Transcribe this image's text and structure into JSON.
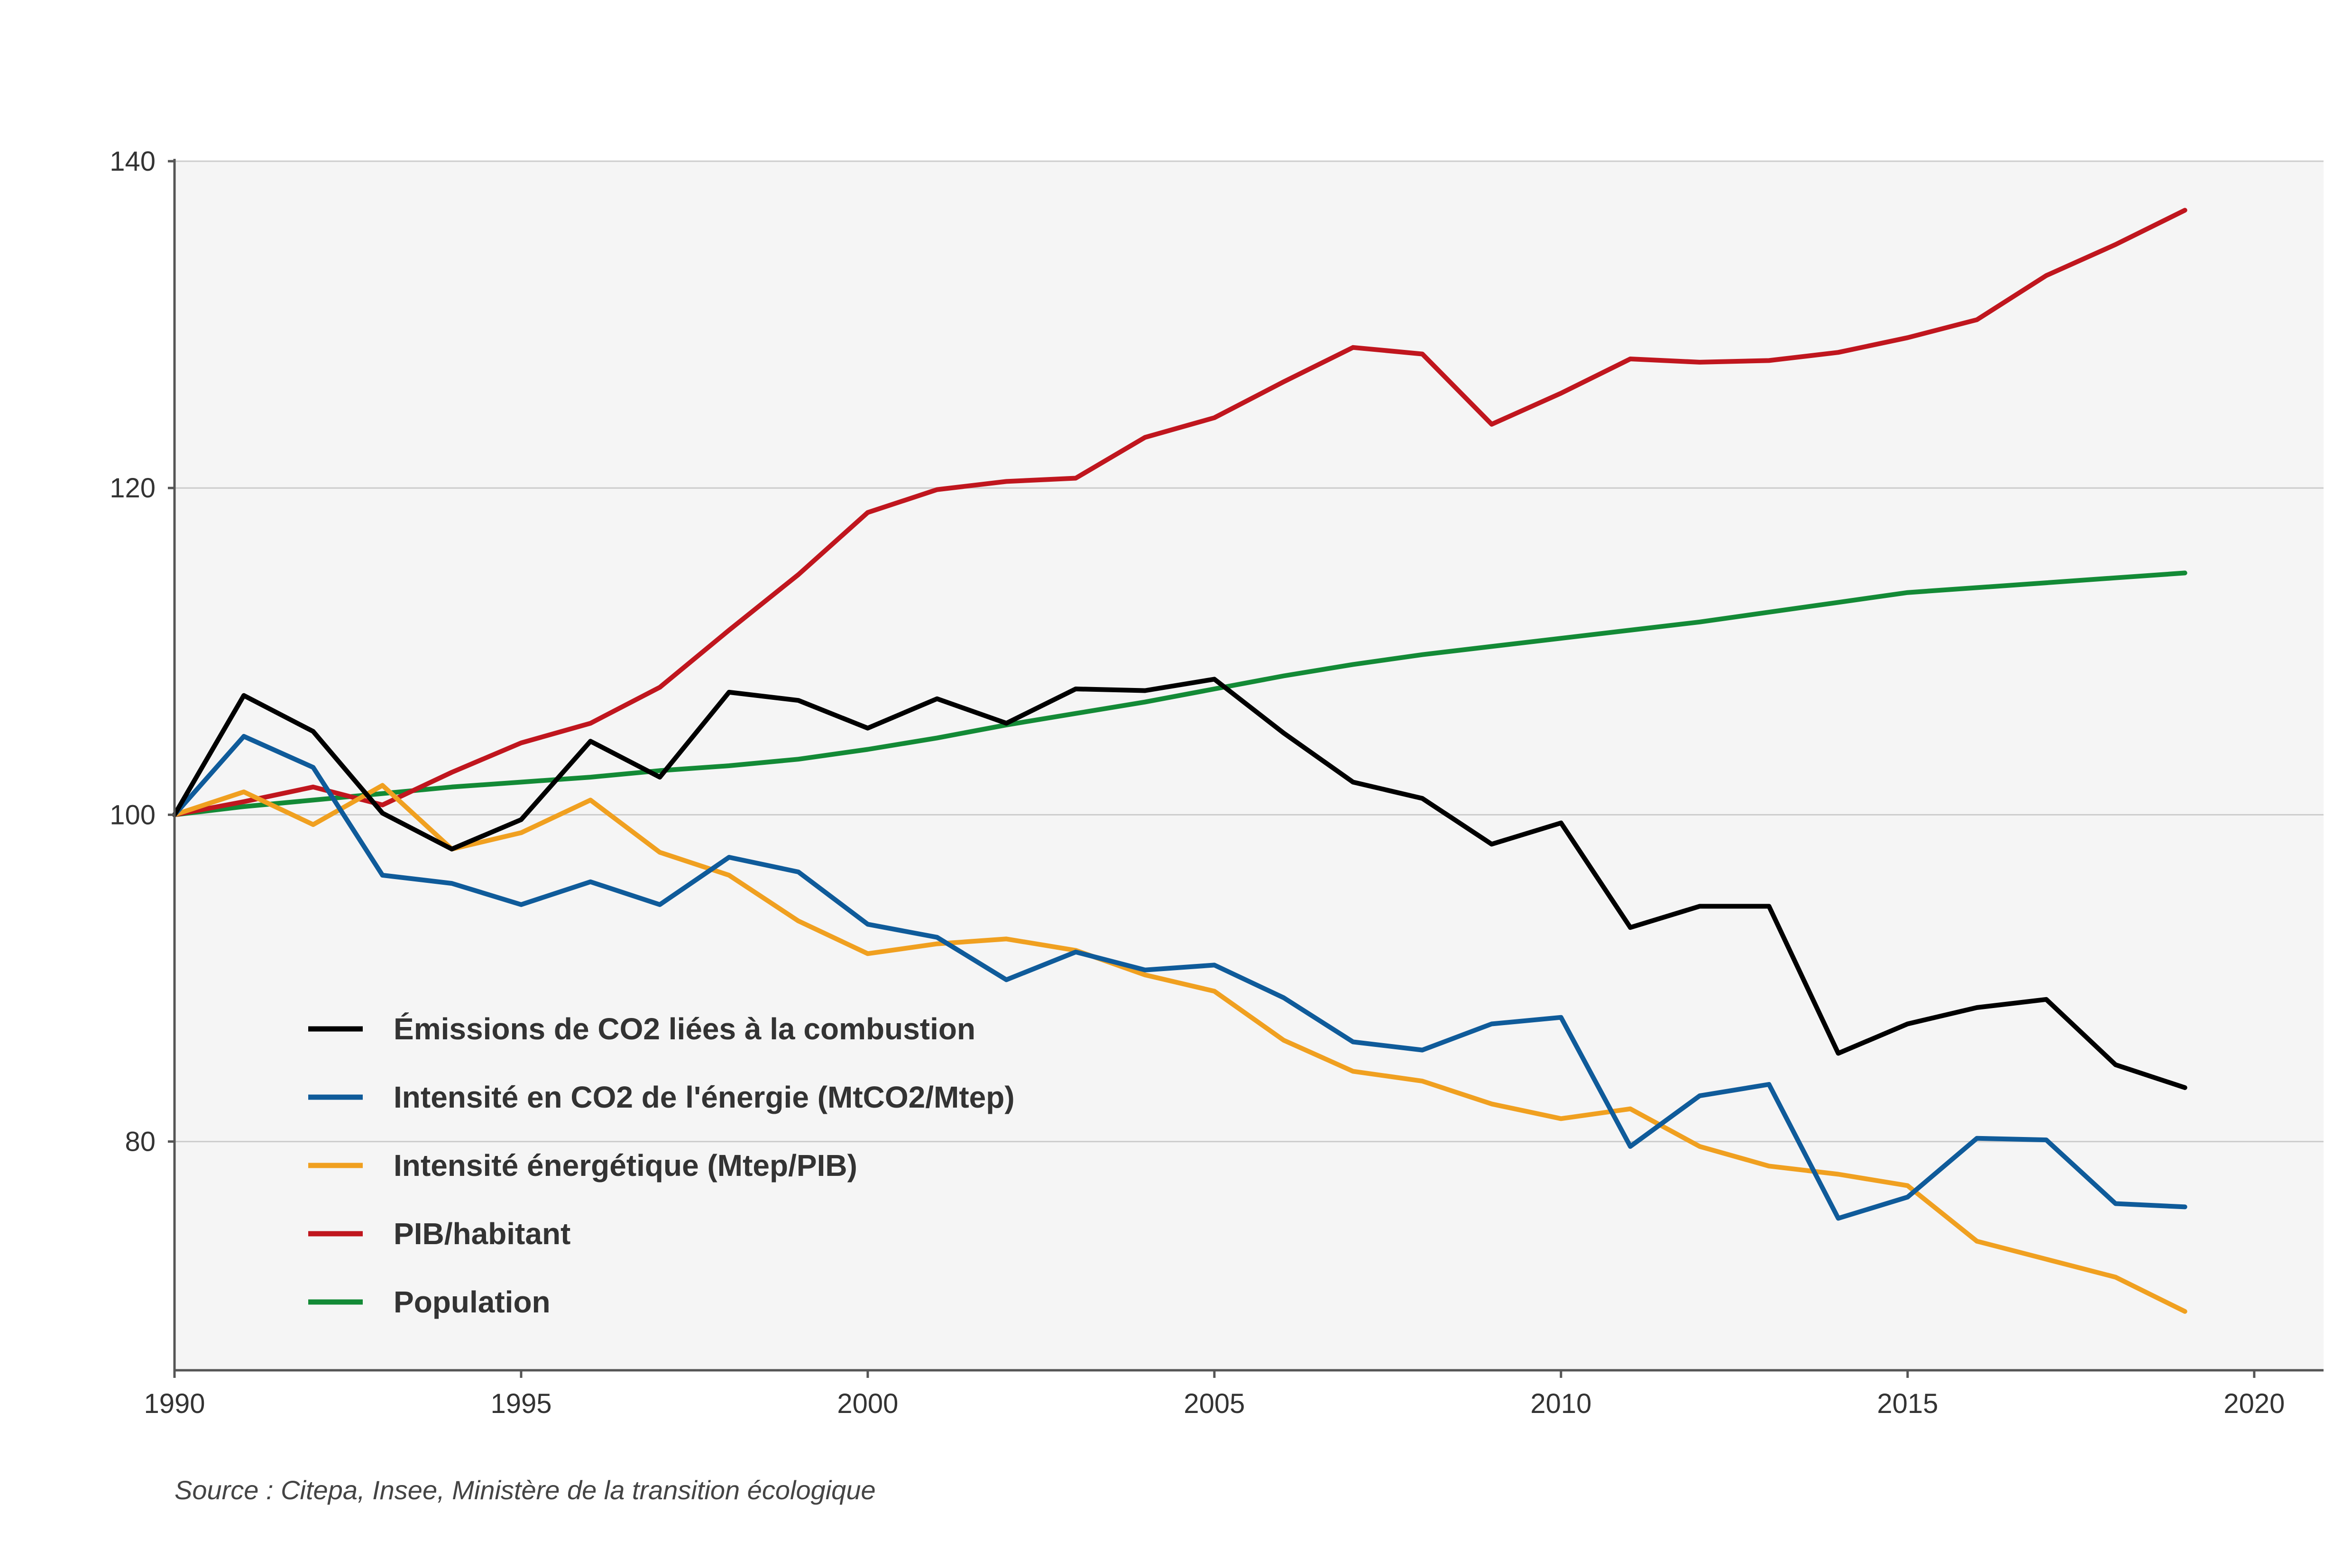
{
  "chart_data": {
    "type": "line",
    "title": "",
    "xlabel": "",
    "ylabel": "",
    "xlim": [
      1990,
      2021
    ],
    "ylim": [
      66,
      140
    ],
    "grid": true,
    "legend_position": "bottom-left",
    "x_ticks": [
      "1990",
      "1995",
      "2000",
      "2005",
      "2010",
      "2015",
      "2020"
    ],
    "y_ticks": [
      "80",
      "100",
      "120",
      "140"
    ],
    "x": [
      1990,
      1991,
      1992,
      1993,
      1994,
      1995,
      1996,
      1997,
      1998,
      1999,
      2000,
      2001,
      2002,
      2003,
      2004,
      2005,
      2006,
      2007,
      2008,
      2009,
      2010,
      2011,
      2012,
      2013,
      2014,
      2015,
      2016,
      2017,
      2018,
      2019
    ],
    "series": [
      {
        "name": "Émissions de CO2 liées à la combustion",
        "color": "#000000",
        "values": [
          100,
          107.3,
          105.1,
          100.1,
          97.9,
          99.7,
          104.5,
          102.3,
          107.5,
          107,
          105.3,
          107.1,
          105.6,
          107.7,
          107.6,
          108.3,
          105,
          102,
          101,
          98.2,
          99.5,
          93.1,
          94.4,
          94.4,
          85.4,
          87.2,
          88.2,
          88.7,
          84.7,
          83.3
        ]
      },
      {
        "name": "Intensité en CO2 de l'énergie (MtCO2/Mtep)",
        "color": "#0F5B9A",
        "values": [
          100,
          104.8,
          102.9,
          96.3,
          95.8,
          94.5,
          95.9,
          94.5,
          97.4,
          96.5,
          93.3,
          92.5,
          89.9,
          91.6,
          90.5,
          90.8,
          88.8,
          86.1,
          85.6,
          87.2,
          87.6,
          79.7,
          82.8,
          83.5,
          75.3,
          76.6,
          80.2,
          80.1,
          76.2,
          76
        ]
      },
      {
        "name": "Intensité énergétique (Mtep/PIB)",
        "color": "#F0A020",
        "values": [
          100,
          101.4,
          99.4,
          101.8,
          97.9,
          98.9,
          100.9,
          97.7,
          96.3,
          93.5,
          91.5,
          92.1,
          92.4,
          91.7,
          90.2,
          89.2,
          86.2,
          84.3,
          83.7,
          82.3,
          81.4,
          82,
          79.7,
          78.5,
          78,
          77.3,
          73.9,
          72.8,
          71.7,
          69.6
        ]
      },
      {
        "name": "PIB/habitant",
        "color": "#C0161E",
        "values": [
          100,
          100.8,
          101.7,
          100.6,
          102.6,
          104.4,
          105.6,
          107.8,
          111.3,
          114.7,
          118.5,
          119.9,
          120.4,
          120.6,
          123.1,
          124.3,
          126.5,
          128.6,
          128.2,
          123.9,
          125.8,
          127.9,
          127.7,
          127.8,
          128.3,
          129.2,
          130.3,
          133,
          134.9,
          137
        ]
      },
      {
        "name": "Population",
        "color": "#138A36",
        "values": [
          100,
          100.5,
          100.9,
          101.3,
          101.7,
          102.0,
          102.3,
          102.7,
          103.0,
          103.4,
          104.0,
          104.7,
          105.5,
          106.2,
          106.9,
          107.7,
          108.5,
          109.2,
          109.8,
          110.3,
          110.8,
          111.3,
          111.8,
          112.4,
          113.0,
          113.6,
          113.9,
          114.2,
          114.5,
          114.8
        ]
      }
    ]
  },
  "source": "Source : Citepa, Insee, Ministère de la transition écologique"
}
